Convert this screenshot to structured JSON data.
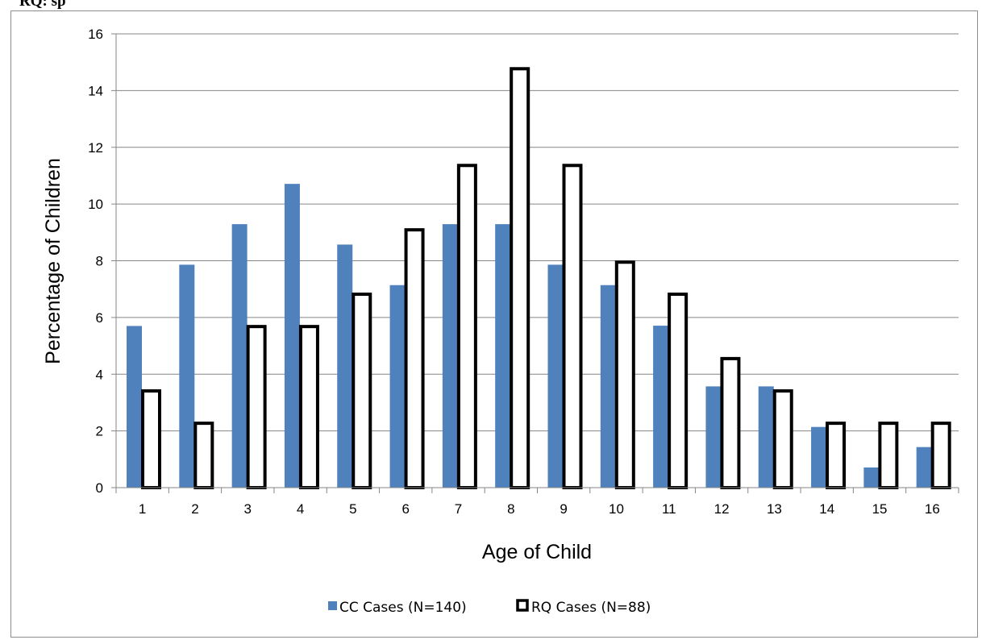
{
  "top_text": "RQ: sp",
  "chart_data": {
    "type": "bar",
    "title": "",
    "xlabel": "Age of Child",
    "ylabel": "Percentage of Children",
    "ylim": [
      0,
      16
    ],
    "yticks": [
      0,
      2,
      4,
      6,
      8,
      10,
      12,
      14,
      16
    ],
    "grid": true,
    "legend_position": "bottom",
    "categories": [
      "1",
      "2",
      "3",
      "4",
      "5",
      "6",
      "7",
      "8",
      "9",
      "10",
      "11",
      "12",
      "13",
      "14",
      "15",
      "16"
    ],
    "series": [
      {
        "name": "CC Cases (N=140)",
        "color": "#4f81bd",
        "style": "filled",
        "values": [
          5.7,
          7.86,
          9.29,
          10.71,
          8.57,
          7.14,
          9.29,
          9.29,
          7.86,
          7.14,
          5.71,
          3.57,
          3.57,
          2.14,
          0.71,
          1.43
        ]
      },
      {
        "name": "RQ Cases (N=88)",
        "color": "#000000",
        "style": "outlined",
        "values": [
          3.41,
          2.27,
          5.68,
          5.68,
          6.82,
          9.09,
          11.36,
          14.77,
          11.36,
          7.95,
          6.82,
          4.55,
          3.41,
          2.27,
          2.27,
          2.27
        ]
      }
    ]
  }
}
